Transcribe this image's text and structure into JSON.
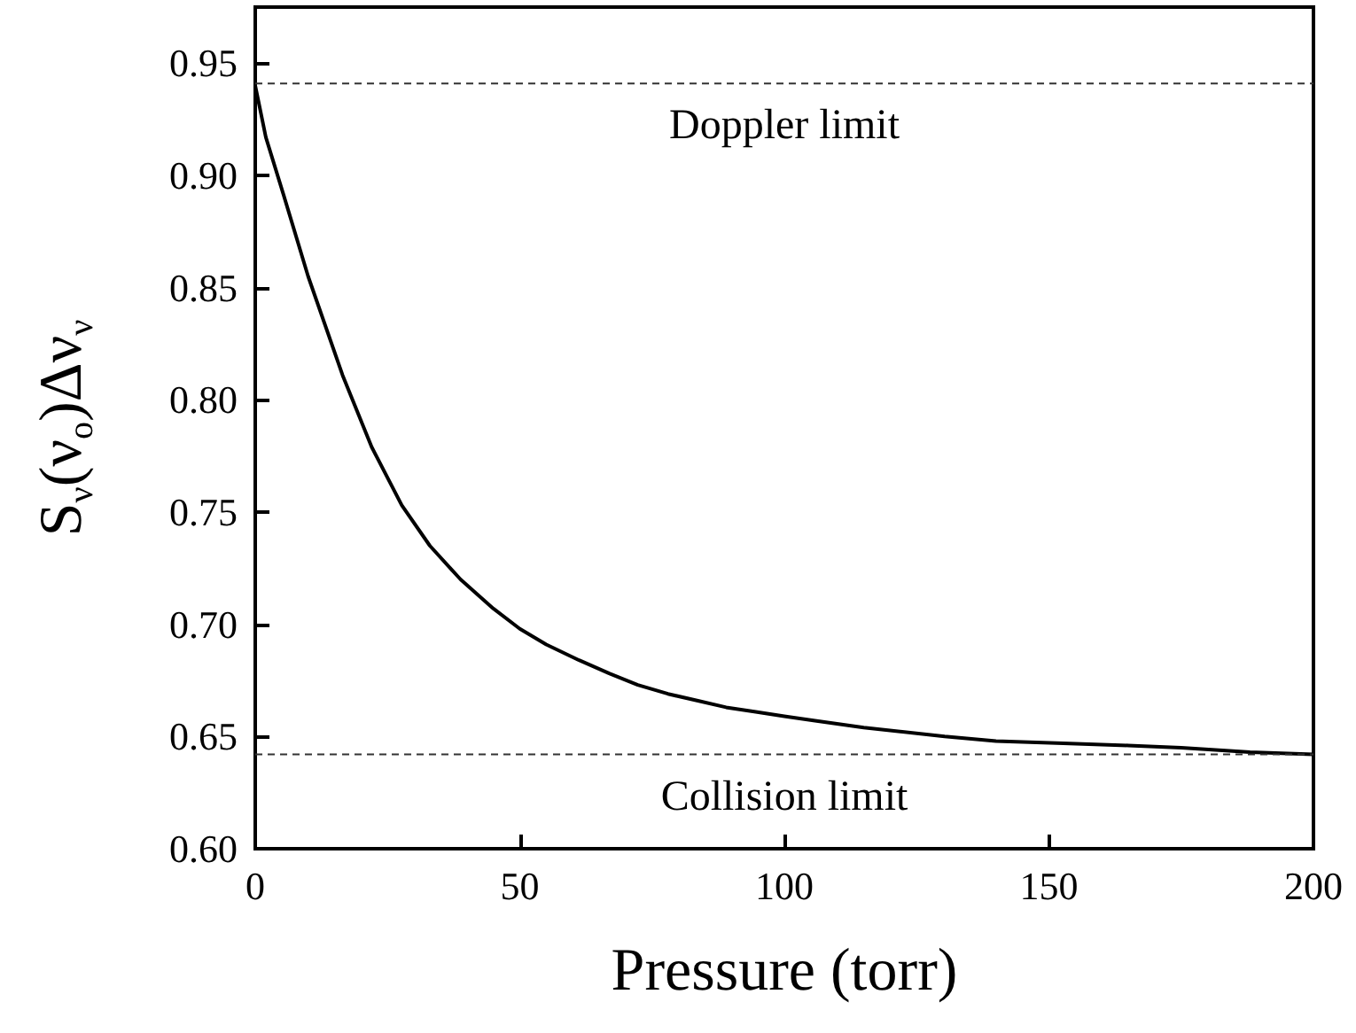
{
  "chart_data": {
    "type": "line",
    "xlabel": "Pressure (torr)",
    "ylabel": "S$_{ν}$(ν$_{o}$)Δν$_{ν}$",
    "x": [
      0,
      2,
      5.4,
      10,
      16.5,
      22,
      27.7,
      33,
      38.8,
      45,
      50,
      55,
      61.2,
      67,
      72.3,
      78,
      83.5,
      89,
      94.6,
      100,
      105.8,
      115,
      130.3,
      140,
      152.7,
      165,
      175,
      188,
      200
    ],
    "series": [
      {
        "color": "#000000",
        "values": [
          0.94,
          0.917,
          0.891,
          0.855,
          0.811,
          0.779,
          0.753,
          0.735,
          0.72,
          0.707,
          0.698,
          0.691,
          0.684,
          0.678,
          0.673,
          0.669,
          0.666,
          0.663,
          0.661,
          0.659,
          0.657,
          0.654,
          0.65,
          0.648,
          0.647,
          0.646,
          0.645,
          0.643,
          0.642
        ]
      }
    ],
    "xlim": [
      0,
      200
    ],
    "xticks": [
      0,
      50,
      100,
      150,
      200
    ],
    "ylim": [
      0.6,
      0.975
    ],
    "yticks": [
      {
        "value": 0.6,
        "label": "0.60"
      },
      {
        "value": 0.65,
        "label": "0.65"
      },
      {
        "value": 0.7,
        "label": "0.70"
      },
      {
        "value": 0.75,
        "label": "0.75"
      },
      {
        "value": 0.8,
        "label": "0.80"
      },
      {
        "value": 0.85,
        "label": "0.85"
      },
      {
        "value": 0.9,
        "label": "0.90"
      },
      {
        "value": 0.95,
        "label": "0.95"
      }
    ],
    "ref_lines": [
      {
        "axis": "y",
        "value": 0.941,
        "label": "Doppler limit",
        "color": "#333333",
        "line_style": "dashed"
      },
      {
        "axis": "y",
        "value": 0.642,
        "label": "Collision limit",
        "color": "#333333",
        "line_style": "dashed"
      }
    ],
    "grid": false,
    "marker": "none",
    "line_style": "solid"
  }
}
